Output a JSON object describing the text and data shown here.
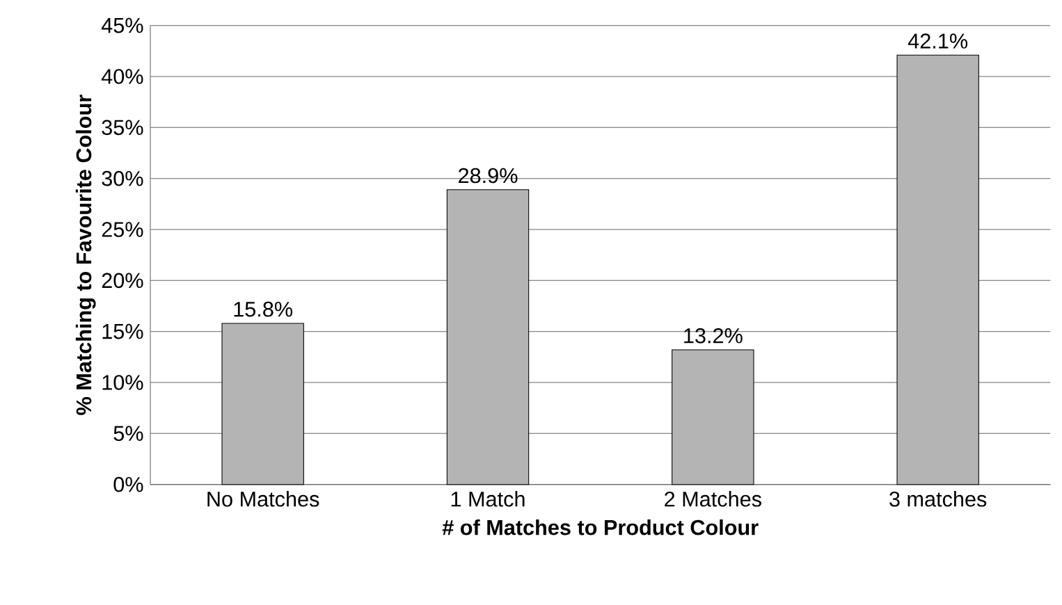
{
  "chart_data": {
    "type": "bar",
    "xlabel": "# of Matches to Product Colour",
    "ylabel": "% Matching to Favourite Colour",
    "categories": [
      "No Matches",
      "1 Match",
      "2 Matches",
      "3 matches"
    ],
    "values": [
      15.8,
      28.9,
      13.2,
      42.1
    ],
    "value_labels": [
      "15.8%",
      "28.9%",
      "13.2%",
      "42.1%"
    ],
    "color": "#b4b4b4",
    "ylim": [
      0,
      45
    ],
    "yticks": [
      {
        "value": 0,
        "label": "0%"
      },
      {
        "value": 5,
        "label": "5%"
      },
      {
        "value": 10,
        "label": "10%"
      },
      {
        "value": 15,
        "label": "15%"
      },
      {
        "value": 20,
        "label": "20%"
      },
      {
        "value": 25,
        "label": "25%"
      },
      {
        "value": 30,
        "label": "30%"
      },
      {
        "value": 35,
        "label": "35%"
      },
      {
        "value": 40,
        "label": "40%"
      },
      {
        "value": 45,
        "label": "45%"
      }
    ],
    "grid": "y"
  }
}
